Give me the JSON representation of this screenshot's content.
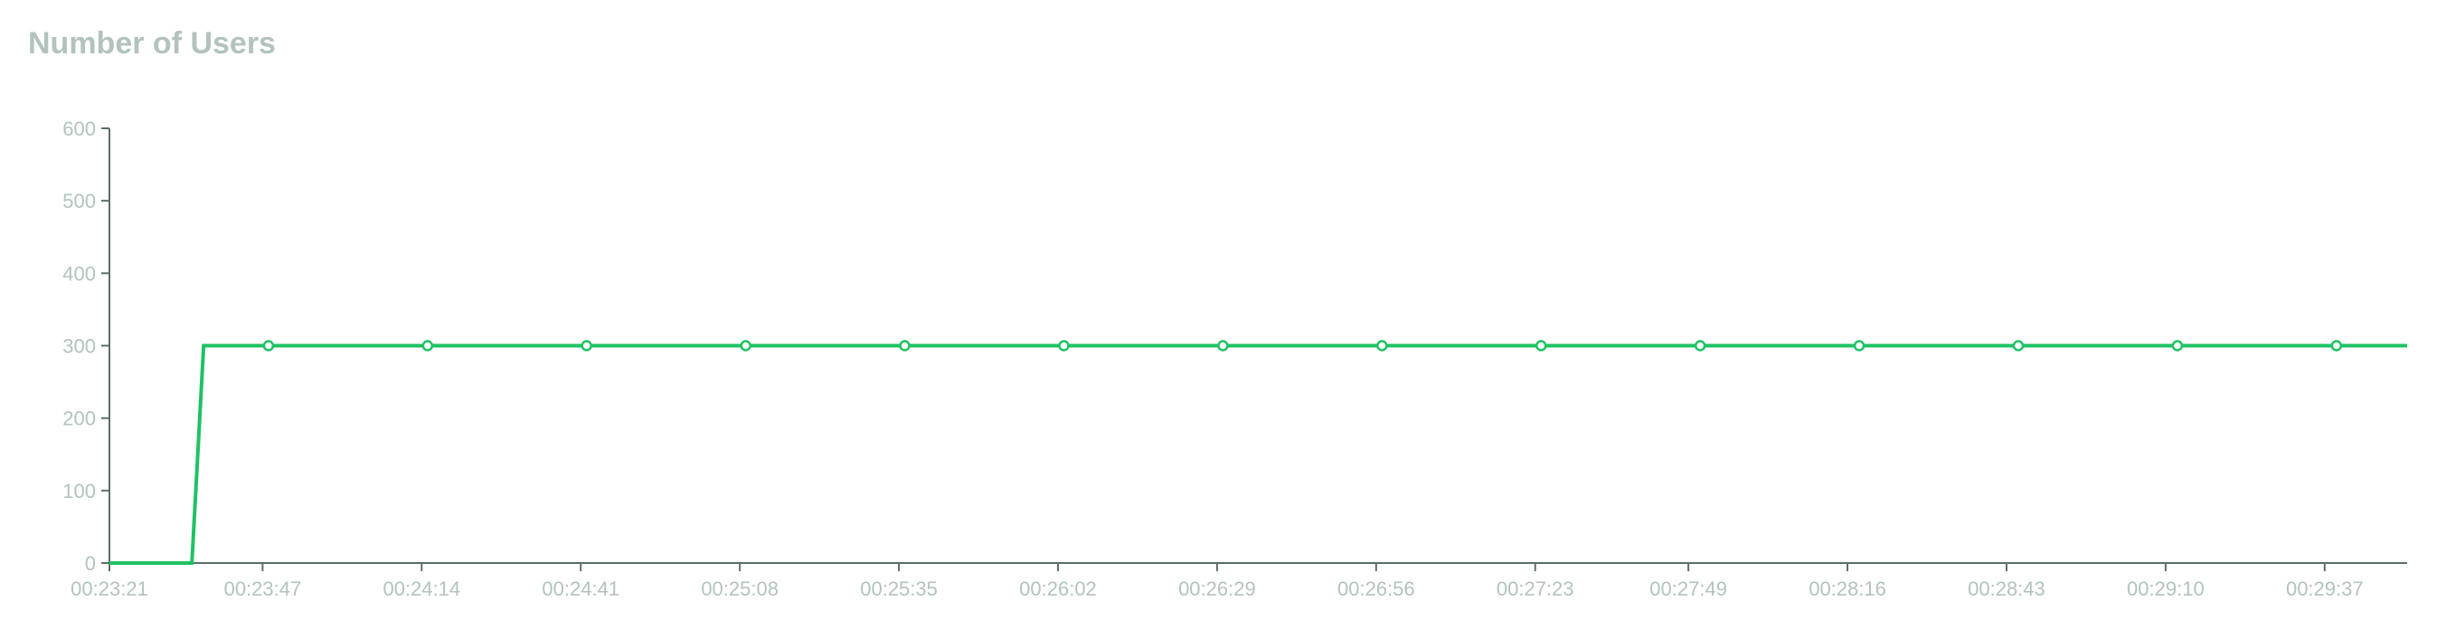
{
  "chart_data": {
    "type": "line",
    "title": "Number of Users",
    "xlabel": "",
    "ylabel": "",
    "ylim": [
      0,
      600
    ],
    "y_ticks": [
      0,
      100,
      200,
      300,
      400,
      500,
      600
    ],
    "x_ticks": [
      "00:23:21",
      "00:23:47",
      "00:24:14",
      "00:24:41",
      "00:25:08",
      "00:25:35",
      "00:26:02",
      "00:26:29",
      "00:26:56",
      "00:27:23",
      "00:27:49",
      "00:28:16",
      "00:28:43",
      "00:29:10",
      "00:29:37"
    ],
    "xlim": [
      "00:23:21",
      "00:29:51"
    ],
    "grid": false,
    "series": [
      {
        "color": "#1fc263",
        "x": [
          "00:23:21",
          "00:23:35",
          "00:23:37",
          "00:23:48",
          "00:24:15",
          "00:24:42",
          "00:25:09",
          "00:25:36",
          "00:26:03",
          "00:26:30",
          "00:26:57",
          "00:27:24",
          "00:27:51",
          "00:28:18",
          "00:28:45",
          "00:29:12",
          "00:29:39",
          "00:29:51"
        ],
        "y": [
          0,
          0,
          300,
          300,
          300,
          300,
          300,
          300,
          300,
          300,
          300,
          300,
          300,
          300,
          300,
          300,
          300,
          300
        ],
        "markers": [
          false,
          false,
          false,
          true,
          true,
          true,
          true,
          true,
          true,
          true,
          true,
          true,
          true,
          true,
          true,
          true,
          true,
          false
        ]
      }
    ]
  }
}
